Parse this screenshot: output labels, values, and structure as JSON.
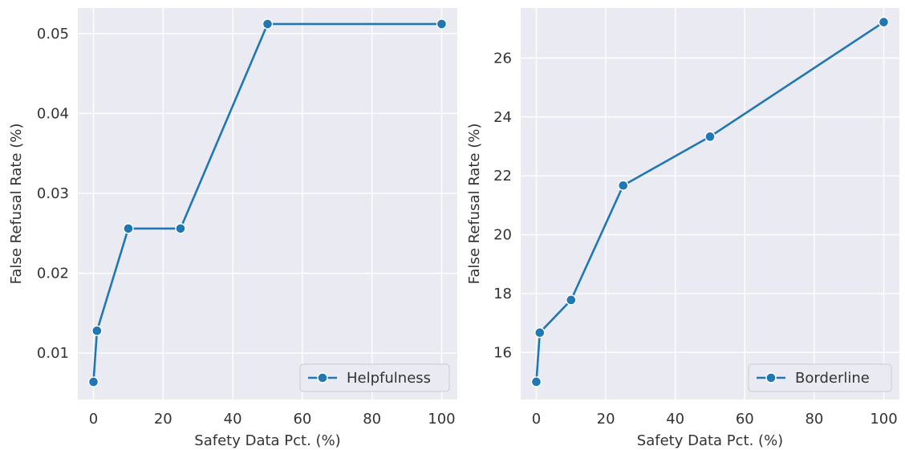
{
  "chart_data": [
    {
      "type": "line",
      "xlabel": "Safety Data Pct. (%)",
      "ylabel": "False Refusal Rate (%)",
      "xlim": [
        -4.5,
        104.5
      ],
      "ylim": [
        0.0042,
        0.0532
      ],
      "xticks": [
        0,
        20,
        40,
        60,
        80,
        100
      ],
      "yticks": [
        0.01,
        0.02,
        0.03,
        0.04,
        0.05
      ],
      "ytick_labels": [
        "0.01",
        "0.02",
        "0.03",
        "0.04",
        "0.05"
      ],
      "grid": true,
      "legend_position": "lower-right",
      "series": [
        {
          "name": "Helpfulness",
          "color": "#1f77b4",
          "marker": "circle",
          "x": [
            0,
            1,
            10,
            25,
            50,
            100
          ],
          "y": [
            0.0064,
            0.0128,
            0.0256,
            0.0256,
            0.0512,
            0.0512
          ]
        }
      ]
    },
    {
      "type": "line",
      "xlabel": "Safety Data Pct. (%)",
      "ylabel": "False Refusal Rate (%)",
      "xlim": [
        -4.5,
        104.5
      ],
      "ylim": [
        14.4,
        27.7
      ],
      "xticks": [
        0,
        20,
        40,
        60,
        80,
        100
      ],
      "yticks": [
        16,
        18,
        20,
        22,
        24,
        26
      ],
      "ytick_labels": [
        "16",
        "18",
        "20",
        "22",
        "24",
        "26"
      ],
      "grid": true,
      "legend_position": "lower-right",
      "series": [
        {
          "name": "Borderline",
          "color": "#1f77b4",
          "marker": "circle",
          "x": [
            0,
            1,
            10,
            25,
            50,
            100
          ],
          "y": [
            15.0,
            16.67,
            17.78,
            21.67,
            23.33,
            27.22
          ]
        }
      ]
    }
  ]
}
